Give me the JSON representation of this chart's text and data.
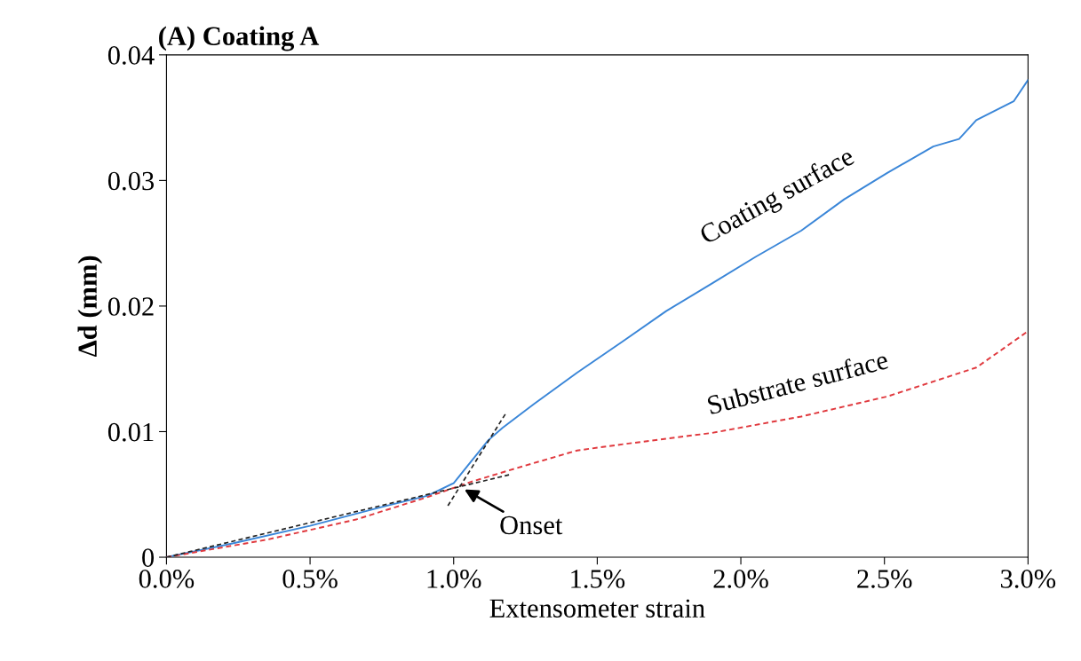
{
  "chart_data": {
    "type": "line",
    "title": "(A) Coating A",
    "xlabel": "Extensometer strain",
    "ylabel": "Δd (mm)",
    "xlim": [
      0,
      3
    ],
    "xticks": [
      {
        "value": 0,
        "label": "0.0%"
      },
      {
        "value": 0.5,
        "label": "0.5%"
      },
      {
        "value": 1,
        "label": "1.0%"
      },
      {
        "value": 1.5,
        "label": "1.5%"
      },
      {
        "value": 2,
        "label": "2.0%"
      },
      {
        "value": 2.5,
        "label": "2.5%"
      },
      {
        "value": 3,
        "label": "3.0%"
      }
    ],
    "ylim": [
      0,
      0.04
    ],
    "yticks": [
      0,
      0.01,
      0.02,
      0.03,
      0.04
    ],
    "grid": false,
    "series": [
      {
        "name": "Coating surface",
        "color": "#3a86d8",
        "line_style": "solid",
        "x": [
          0,
          0.23,
          0.5,
          0.75,
          0.91,
          1.0,
          1.06,
          1.12,
          1.17,
          1.28,
          1.43,
          1.59,
          1.74,
          1.9,
          2.05,
          2.21,
          2.36,
          2.51,
          2.67,
          2.76,
          2.82,
          2.95,
          3.0
        ],
        "values": [
          0,
          0.0011,
          0.0025,
          0.004,
          0.0049,
          0.0059,
          0.0076,
          0.0093,
          0.0103,
          0.0122,
          0.0147,
          0.0172,
          0.0196,
          0.0218,
          0.0239,
          0.026,
          0.0285,
          0.0306,
          0.0327,
          0.0333,
          0.0348,
          0.0363,
          0.038
        ]
      },
      {
        "name": "Substrate surface",
        "color": "#e0393e",
        "line_style": "dashed",
        "x": [
          0,
          0.35,
          0.66,
          0.91,
          1.06,
          1.22,
          1.43,
          1.59,
          1.9,
          2.21,
          2.51,
          2.82,
          3.0
        ],
        "values": [
          0,
          0.0014,
          0.003,
          0.0048,
          0.006,
          0.0071,
          0.0085,
          0.009,
          0.0099,
          0.0112,
          0.0128,
          0.0151,
          0.018
        ]
      },
      {
        "color": "#222222",
        "line_style": "dashed",
        "x": [
          0,
          1.2
        ],
        "values": [
          0,
          0.0066
        ]
      },
      {
        "color": "#222222",
        "line_style": "dashed",
        "x": [
          0.98,
          1.18
        ],
        "values": [
          0.0041,
          0.0114
        ]
      }
    ],
    "annotations": [
      {
        "text": "Onset",
        "x": 1.03,
        "y": 0.0055
      }
    ]
  }
}
